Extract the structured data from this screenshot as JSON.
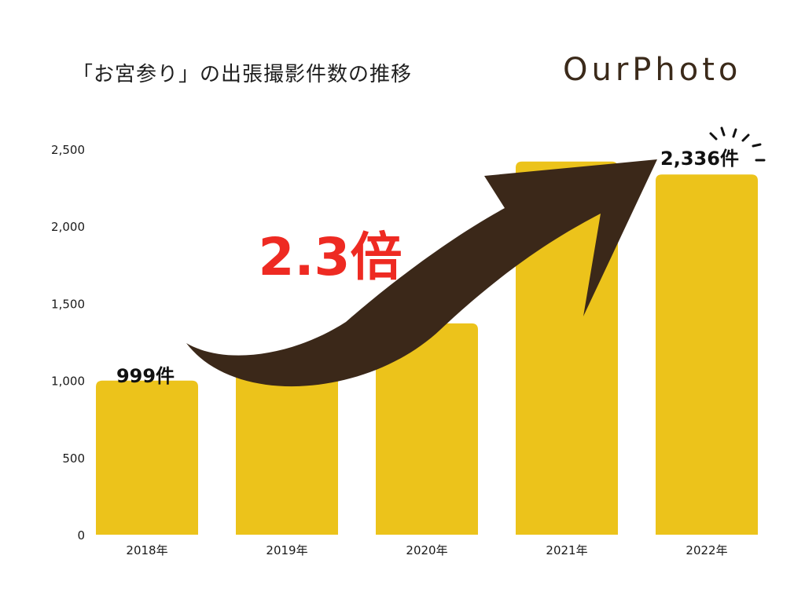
{
  "header": {
    "title": "「お宮参り」の出張撮影件数の推移",
    "logo_text": "OurPhoto"
  },
  "annotation": {
    "multiplier": "2.3倍",
    "multiplier_color": "#ee2a22"
  },
  "colors": {
    "bar": "#ecc31b",
    "arrow": "#3b2819",
    "axis_text": "#1a1a1a"
  },
  "chart_data": {
    "type": "bar",
    "title": "「お宮参り」の出張撮影件数の推移",
    "categories": [
      "2018年",
      "2019年",
      "2020年",
      "2021年",
      "2022年"
    ],
    "values": [
      999,
      1120,
      1370,
      2420,
      2336
    ],
    "data_labels": [
      {
        "category": "2018年",
        "text": "999件"
      },
      {
        "category": "2022年",
        "text": "2,336件"
      }
    ],
    "ylim": [
      0,
      2500
    ],
    "yticks": [
      0,
      500,
      1000,
      1500,
      2000,
      2500
    ],
    "ytick_labels": [
      "0",
      "500",
      "1,000",
      "1,500",
      "2,000",
      "2,500"
    ],
    "xlabel": "",
    "ylabel": "",
    "grid": false
  }
}
